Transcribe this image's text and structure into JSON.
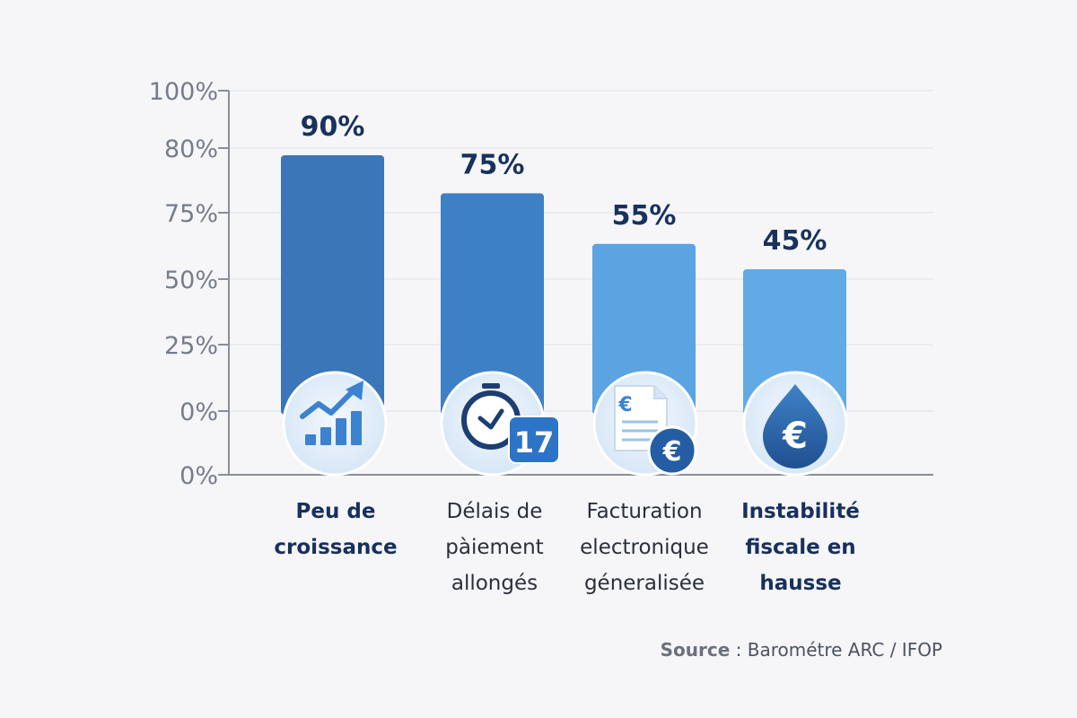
{
  "chart_data": {
    "type": "bar",
    "categories": [
      [
        "Peu de",
        "croissance"
      ],
      [
        "Délais de",
        "pàiement",
        "allongés"
      ],
      [
        "Facturation",
        "electronique",
        "géneralisée"
      ],
      [
        "Instabilité",
        "fiscale en",
        "hausse"
      ]
    ],
    "values": [
      90,
      75,
      55,
      45
    ],
    "value_labels": [
      "90%",
      "75%",
      "55%",
      "45%"
    ],
    "category_label_bold": [
      true,
      false,
      false,
      true
    ],
    "ytick_labels": [
      "100%",
      "80%",
      "75%",
      "50%",
      "25%",
      "0%",
      "0%"
    ],
    "icons": [
      "growth-chart-icon",
      "stopwatch-calendar-icon",
      "invoice-euro-icon",
      "euro-drop-icon"
    ],
    "grid": true,
    "bar_colors": [
      "#3a76b8",
      "#3e80c6",
      "#5ca3e2",
      "#61aae6"
    ],
    "title": "",
    "xlabel": "",
    "ylabel": ""
  },
  "source": {
    "label": "Source",
    "text": " : Barométre ARC / IFOP"
  },
  "colors": {
    "background": "#f6f6f9",
    "axis": "#8a8e99",
    "value_text": "#18325d",
    "icon_dark": "#1d3e73",
    "icon_blue": "#3c82d0"
  }
}
